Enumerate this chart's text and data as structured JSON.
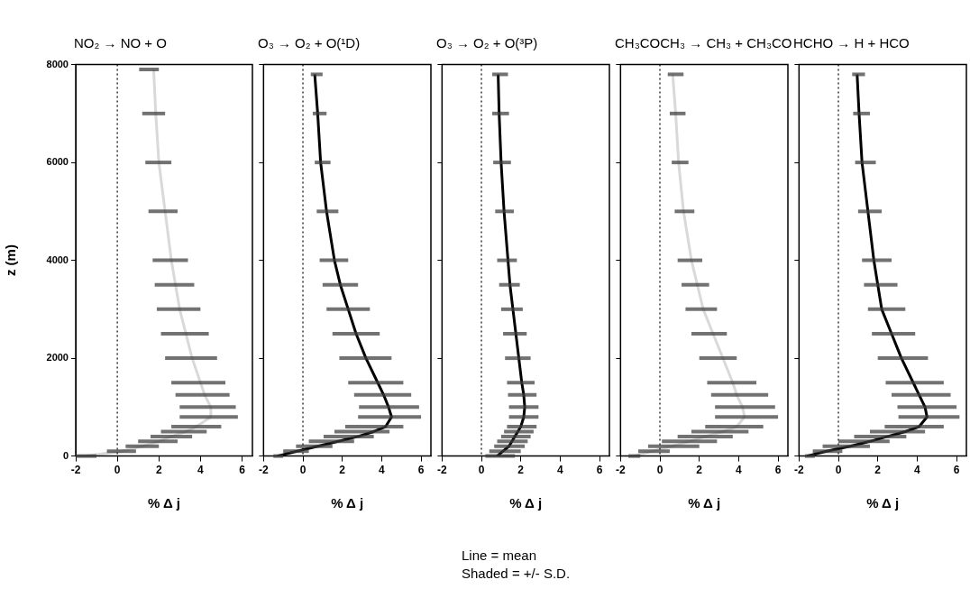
{
  "chart_data": [
    {
      "type": "line",
      "title": "NO₂ → NO + O",
      "xlabel": "% Δ j",
      "ylabel": "z (m)",
      "xlim": [
        -2,
        6.5
      ],
      "xticks": [
        -2,
        0,
        2,
        4,
        6
      ],
      "ylim": [
        0,
        8000
      ],
      "yticks": [
        0,
        2000,
        4000,
        6000,
        8000
      ],
      "ref_lines": [
        {
          "axis": "x",
          "value": 0,
          "line_style": "dotted"
        }
      ],
      "series": [
        {
          "color": "#d9d9d9",
          "x": [
            -1.5,
            0.2,
            1.2,
            2.0,
            2.6,
            3.3,
            3.8,
            4.5,
            4.5,
            4.2,
            4.0,
            3.6,
            3.3,
            3.0,
            2.8,
            2.6,
            2.3,
            2.0,
            1.85,
            1.75
          ],
          "values": [
            0,
            100,
            200,
            300,
            400,
            500,
            600,
            800,
            1000,
            1250,
            1500,
            2000,
            2500,
            3000,
            3500,
            4000,
            5000,
            6000,
            7000,
            7900
          ],
          "xerrors": [
            [
              -2,
              -1
            ],
            [
              -0.5,
              0.9
            ],
            [
              0.4,
              2.0
            ],
            [
              1.0,
              2.9
            ],
            [
              1.6,
              3.6
            ],
            [
              2.1,
              4.3
            ],
            [
              2.6,
              5.0
            ],
            [
              3.0,
              5.8
            ],
            [
              3.0,
              5.7
            ],
            [
              2.8,
              5.4
            ],
            [
              2.6,
              5.2
            ],
            [
              2.3,
              4.8
            ],
            [
              2.1,
              4.4
            ],
            [
              1.9,
              4.0
            ],
            [
              1.8,
              3.7
            ],
            [
              1.7,
              3.4
            ],
            [
              1.5,
              2.9
            ],
            [
              1.35,
              2.6
            ],
            [
              1.2,
              2.3
            ],
            [
              1.05,
              2.0
            ]
          ]
        }
      ]
    },
    {
      "type": "line",
      "title": "O₃ → O₂ + O(¹D)",
      "xlabel": "% Δ j",
      "xlim": [
        -2,
        6.5
      ],
      "xticks": [
        -2,
        0,
        2,
        4,
        6
      ],
      "ylim": [
        0,
        8000
      ],
      "yticks": [
        0,
        2000,
        4000,
        6000,
        8000
      ],
      "tick_labels": "x",
      "ref_lines": [
        {
          "axis": "x",
          "value": 0,
          "line_style": "dotted"
        }
      ],
      "series": [
        {
          "color": "#000000",
          "x": [
            -1.3,
            -0.3,
            0.75,
            1.8,
            2.8,
            3.6,
            4.2,
            4.5,
            4.35,
            4.1,
            3.8,
            3.2,
            2.7,
            2.3,
            1.9,
            1.6,
            1.2,
            0.9,
            0.75,
            0.6
          ],
          "values": [
            0,
            100,
            200,
            300,
            400,
            500,
            600,
            800,
            1000,
            1250,
            1500,
            2000,
            2500,
            3000,
            3500,
            4000,
            5000,
            6000,
            7000,
            7800
          ],
          "xerrors": [
            [
              -1.5,
              -1.0
            ],
            [
              -1.0,
              0.3
            ],
            [
              -0.35,
              1.5
            ],
            [
              0.3,
              2.6
            ],
            [
              1.05,
              3.6
            ],
            [
              1.6,
              4.4
            ],
            [
              2.15,
              5.1
            ],
            [
              2.8,
              6.0
            ],
            [
              2.85,
              5.9
            ],
            [
              2.6,
              5.5
            ],
            [
              2.3,
              5.1
            ],
            [
              1.85,
              4.5
            ],
            [
              1.5,
              3.9
            ],
            [
              1.2,
              3.4
            ],
            [
              1.0,
              2.8
            ],
            [
              0.85,
              2.3
            ],
            [
              0.7,
              1.8
            ],
            [
              0.6,
              1.4
            ],
            [
              0.5,
              1.2
            ],
            [
              0.4,
              1.0
            ]
          ]
        }
      ]
    },
    {
      "type": "line",
      "title": "O₃ → O₂ + O(³P)",
      "xlabel": "% Δ j",
      "xlim": [
        -2,
        6.5
      ],
      "xticks": [
        -2,
        0,
        2,
        4,
        6
      ],
      "ylim": [
        0,
        8000
      ],
      "yticks": [
        0,
        2000,
        4000,
        6000,
        8000
      ],
      "tick_labels": "x",
      "ref_lines": [
        {
          "axis": "x",
          "value": 0,
          "line_style": "dotted"
        }
      ],
      "annotations": [
        "Line = mean",
        "Shaded = +/- S.D."
      ],
      "series": [
        {
          "color": "#000000",
          "x": [
            0.8,
            1.1,
            1.4,
            1.55,
            1.7,
            1.85,
            2.0,
            2.15,
            2.2,
            2.15,
            2.05,
            1.9,
            1.75,
            1.6,
            1.45,
            1.35,
            1.15,
            1.0,
            0.9,
            0.85
          ],
          "values": [
            0,
            100,
            200,
            300,
            400,
            500,
            600,
            800,
            1000,
            1250,
            1500,
            2000,
            2500,
            3000,
            3500,
            4000,
            5000,
            6000,
            7000,
            7800
          ],
          "xerrors": [
            [
              0.2,
              1.7
            ],
            [
              0.4,
              2.0
            ],
            [
              0.65,
              2.2
            ],
            [
              0.8,
              2.35
            ],
            [
              1.0,
              2.5
            ],
            [
              1.15,
              2.65
            ],
            [
              1.3,
              2.8
            ],
            [
              1.4,
              2.9
            ],
            [
              1.4,
              2.9
            ],
            [
              1.35,
              2.8
            ],
            [
              1.3,
              2.7
            ],
            [
              1.2,
              2.5
            ],
            [
              1.1,
              2.3
            ],
            [
              1.0,
              2.1
            ],
            [
              0.9,
              1.95
            ],
            [
              0.8,
              1.8
            ],
            [
              0.7,
              1.65
            ],
            [
              0.6,
              1.5
            ],
            [
              0.55,
              1.4
            ],
            [
              0.55,
              1.35
            ]
          ]
        }
      ]
    },
    {
      "type": "line",
      "title": "CH₃COCH₃ → CH₃ + CH₃CO",
      "xlabel": "% Δ j",
      "xlim": [
        -2,
        6.5
      ],
      "xticks": [
        -2,
        0,
        2,
        4,
        6
      ],
      "ylim": [
        0,
        8000
      ],
      "yticks": [
        0,
        2000,
        4000,
        6000,
        8000
      ],
      "tick_labels": "x",
      "ref_lines": [
        {
          "axis": "x",
          "value": 0,
          "line_style": "dotted"
        }
      ],
      "series": [
        {
          "color": "#d9d9d9",
          "x": [
            -1.3,
            -0.4,
            0.6,
            1.5,
            2.3,
            3.2,
            3.9,
            4.3,
            4.2,
            3.9,
            3.7,
            3.2,
            2.7,
            2.2,
            1.9,
            1.6,
            1.2,
            0.95,
            0.8,
            0.65
          ],
          "values": [
            0,
            100,
            200,
            300,
            400,
            500,
            600,
            800,
            1000,
            1250,
            1500,
            2000,
            2500,
            3000,
            3500,
            4000,
            5000,
            6000,
            7000,
            7800
          ],
          "xerrors": [
            [
              -1.6,
              -1.0
            ],
            [
              -1.1,
              0.5
            ],
            [
              -0.6,
              2.0
            ],
            [
              0.1,
              2.9
            ],
            [
              0.9,
              3.7
            ],
            [
              1.6,
              4.5
            ],
            [
              2.3,
              5.25
            ],
            [
              2.8,
              6.0
            ],
            [
              2.8,
              5.85
            ],
            [
              2.6,
              5.5
            ],
            [
              2.4,
              4.9
            ],
            [
              2.0,
              3.9
            ],
            [
              1.6,
              3.4
            ],
            [
              1.3,
              2.9
            ],
            [
              1.1,
              2.5
            ],
            [
              0.9,
              2.15
            ],
            [
              0.75,
              1.75
            ],
            [
              0.6,
              1.45
            ],
            [
              0.5,
              1.3
            ],
            [
              0.4,
              1.2
            ]
          ]
        }
      ]
    },
    {
      "type": "line",
      "title": "HCHO → H + HCO",
      "xlabel": "% Δ j",
      "xlim": [
        -2,
        6.5
      ],
      "xticks": [
        -2,
        0,
        2,
        4,
        6
      ],
      "ylim": [
        0,
        8000
      ],
      "yticks": [
        0,
        2000,
        4000,
        6000,
        8000
      ],
      "tick_labels": "x",
      "ref_lines": [
        {
          "axis": "x",
          "value": 0,
          "line_style": "dotted"
        }
      ],
      "series": [
        {
          "color": "#000000",
          "x": [
            -1.6,
            -0.6,
            0.6,
            1.6,
            2.5,
            3.4,
            4.1,
            4.5,
            4.4,
            4.1,
            3.8,
            3.2,
            2.7,
            2.2,
            2.0,
            1.8,
            1.5,
            1.2,
            1.05,
            0.95
          ],
          "values": [
            0,
            100,
            200,
            300,
            400,
            500,
            600,
            800,
            1000,
            1250,
            1500,
            2000,
            2500,
            3000,
            3500,
            4000,
            5000,
            6000,
            7000,
            7800
          ],
          "xerrors": [
            [
              -1.7,
              -1.2
            ],
            [
              -1.3,
              0.2
            ],
            [
              -0.8,
              1.6
            ],
            [
              0.0,
              2.6
            ],
            [
              0.8,
              3.45
            ],
            [
              1.6,
              4.4
            ],
            [
              2.35,
              5.35
            ],
            [
              3.05,
              6.15
            ],
            [
              3.0,
              6.0
            ],
            [
              2.7,
              5.7
            ],
            [
              2.4,
              5.35
            ],
            [
              2.0,
              4.55
            ],
            [
              1.7,
              3.9
            ],
            [
              1.5,
              3.4
            ],
            [
              1.3,
              3.0
            ],
            [
              1.2,
              2.7
            ],
            [
              1.0,
              2.2
            ],
            [
              0.85,
              1.9
            ],
            [
              0.75,
              1.6
            ],
            [
              0.7,
              1.35
            ]
          ]
        }
      ]
    }
  ]
}
